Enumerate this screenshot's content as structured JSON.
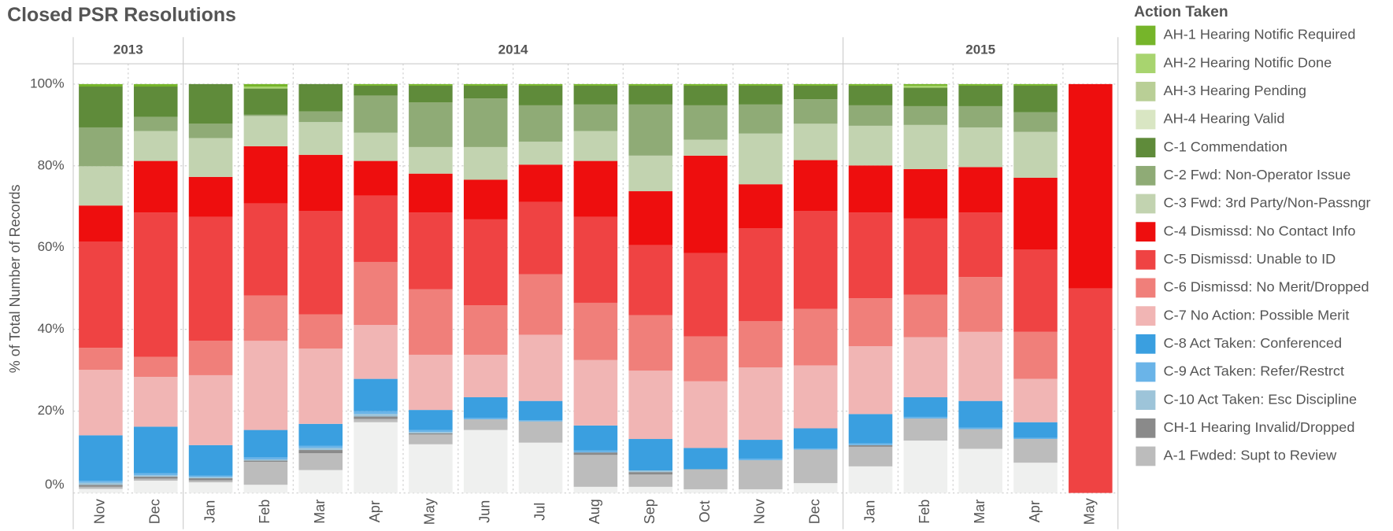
{
  "chart_data": {
    "type": "stacked-bar-100",
    "title": "Closed PSR Resolutions",
    "y_label": "% of Total Number of Records",
    "legend_title": "Action Taken",
    "groups": [
      {
        "name": "2013",
        "categories": [
          "Nov",
          "Dec"
        ]
      },
      {
        "name": "2014",
        "categories": [
          "Jan",
          "Feb",
          "Mar",
          "Apr",
          "May",
          "Jun",
          "Jul",
          "Aug",
          "Sep",
          "Oct",
          "Nov",
          "Dec"
        ]
      },
      {
        "name": "2015",
        "categories": [
          "Jan",
          "Feb",
          "Mar",
          "Apr",
          "May"
        ]
      }
    ],
    "ylim": [
      0,
      100
    ],
    "yticks": [
      {
        "value": 0,
        "label": "0%"
      },
      {
        "value": 20,
        "label": "20%"
      },
      {
        "value": 40,
        "label": "40%"
      },
      {
        "value": 60,
        "label": "60%"
      },
      {
        "value": 80,
        "label": "80%"
      },
      {
        "value": 100,
        "label": "100%"
      }
    ],
    "grid": true,
    "legend": "right",
    "series": [
      {
        "name": "AH-1 Hearing Notific Required",
        "color": "#76b52a",
        "values": [
          0.6,
          0.6,
          0,
          0.6,
          0,
          0.4,
          0.4,
          0.4,
          0.4,
          0.4,
          0.4,
          0.4,
          0.4,
          0.4,
          0.4,
          0.4,
          0.4,
          0.4,
          0
        ]
      },
      {
        "name": "AH-2 Hearing Notific Done",
        "color": "#a8d46f",
        "values": [
          0,
          0,
          0,
          0.5,
          0,
          0,
          0,
          0,
          0,
          0,
          0,
          0,
          0,
          0,
          0,
          0.5,
          0,
          0,
          0
        ]
      },
      {
        "name": "AH-3 Hearing Pending",
        "color": "#b9cf96",
        "values": [
          0,
          0,
          0,
          0,
          0,
          0,
          0,
          0,
          0,
          0,
          0,
          0,
          0,
          0,
          0,
          0,
          0,
          0,
          0
        ]
      },
      {
        "name": "AH-4 Hearing Valid",
        "color": "#d9e6c3",
        "values": [
          0,
          0,
          0,
          0,
          0,
          0,
          0,
          0,
          0,
          0,
          0,
          0,
          0,
          0,
          0,
          0,
          0,
          0,
          0
        ]
      },
      {
        "name": "C-1 Commendation",
        "color": "#5f8b3a",
        "values": [
          10,
          7.4,
          9.7,
          6.4,
          6.7,
          2.4,
          4.1,
          3.1,
          4.8,
          4.6,
          4.6,
          4.8,
          4.6,
          3.3,
          4.8,
          4.5,
          5,
          6.5,
          0
        ]
      },
      {
        "name": "C-2 Fwd: Non-Operator Issue",
        "color": "#8fab76",
        "values": [
          9.5,
          3.5,
          3.5,
          0.3,
          2.6,
          9.1,
          10.9,
          11.9,
          8.9,
          6.5,
          12.5,
          8.4,
          7.1,
          6,
          5,
          4.6,
          5.2,
          4.8,
          0
        ]
      },
      {
        "name": "C-3 Fwd: 3rd Party/Non-Passngr",
        "color": "#c2d3b0",
        "values": [
          9.6,
          7.3,
          9.5,
          7.4,
          8,
          6.9,
          6.5,
          8,
          5.6,
          7.3,
          8.7,
          3.9,
          12.4,
          8.9,
          9.7,
          10.8,
          9.7,
          11.2,
          0
        ]
      },
      {
        "name": "C-4 Dismissd: No Contact Info",
        "color": "#ee0e0e",
        "values": [
          8.8,
          12.6,
          9.8,
          14,
          13.7,
          8.5,
          9.5,
          9.7,
          9.1,
          13.7,
          13.2,
          23.8,
          10.8,
          12.4,
          11.5,
          12.1,
          11.1,
          17.6,
          50
        ]
      },
      {
        "name": "C-5 Dismissd: Unable to ID",
        "color": "#ef4343",
        "values": [
          26,
          35.3,
          30.3,
          22.5,
          25.3,
          16.2,
          18.8,
          21,
          17.7,
          21,
          17.1,
          20.4,
          22.7,
          24,
          21,
          18.6,
          15.8,
          20.1,
          50
        ]
      },
      {
        "name": "C-6 Dismissd: No Merit/Dropped",
        "color": "#f07f7a",
        "values": [
          5.4,
          4.9,
          8.4,
          11.1,
          8.4,
          15.4,
          16,
          12.1,
          14.8,
          14,
          13.6,
          11,
          11.3,
          13.8,
          11.7,
          10.4,
          13.4,
          11.5,
          0
        ]
      },
      {
        "name": "C-7 No Action: Possible Merit",
        "color": "#f1b5b4",
        "values": [
          16,
          12.2,
          17.1,
          21.8,
          18.4,
          13.2,
          13.5,
          10.4,
          16.2,
          16,
          16.7,
          16.3,
          17.7,
          15.4,
          16.6,
          14.7,
          16.9,
          10.6,
          0
        ]
      },
      {
        "name": "C-8 Act Taken: Conferenced",
        "color": "#3a9fe0",
        "values": [
          11.1,
          11.4,
          7.5,
          6.7,
          5.4,
          7.9,
          4.9,
          5,
          4.7,
          6.1,
          7.7,
          5.2,
          4.6,
          4.9,
          7.2,
          4.8,
          6.5,
          3.8,
          0
        ]
      },
      {
        "name": "C-9 Act Taken: Refer/Restrct",
        "color": "#6ab4e8",
        "values": [
          0.5,
          0.5,
          0.3,
          0.5,
          0.5,
          0.7,
          0.5,
          0.4,
          0.3,
          0.5,
          0,
          0,
          0.4,
          0.3,
          0.4,
          0.4,
          0.4,
          0.3,
          0
        ]
      },
      {
        "name": "C-10 Act Taken: Esc Discipline",
        "color": "#9dc4d9",
        "values": [
          0.5,
          0.3,
          0.3,
          0.3,
          0.5,
          0.6,
          0.3,
          0,
          0,
          0,
          0.4,
          0,
          0,
          0,
          0,
          0,
          0,
          0,
          0
        ]
      },
      {
        "name": "CH-1 Hearing Invalid/Dropped",
        "color": "#8a8a8a",
        "values": [
          0.5,
          0.5,
          0.5,
          0.3,
          0.8,
          0.6,
          0.3,
          0,
          0,
          0.6,
          0.6,
          0,
          0,
          0,
          0.4,
          0,
          0,
          0,
          0
        ]
      },
      {
        "name": "A-1 Fwded: Supt  to Review",
        "color": "#bcbcbc",
        "values": [
          0.5,
          0.5,
          0.5,
          5.6,
          4.1,
          0.8,
          2.4,
          2.6,
          5.2,
          7.8,
          3,
          4.9,
          7.1,
          8.2,
          4.8,
          5.4,
          4.8,
          5.8,
          0
        ]
      },
      {
        "color": "#eff0ef",
        "values": [
          1,
          3,
          2.6,
          2,
          5.6,
          17.3,
          11.9,
          15.4,
          12.3,
          1.5,
          1.5,
          0.9,
          0.9,
          2.4,
          6.5,
          12.8,
          10.8,
          7.4,
          0
        ]
      }
    ]
  }
}
